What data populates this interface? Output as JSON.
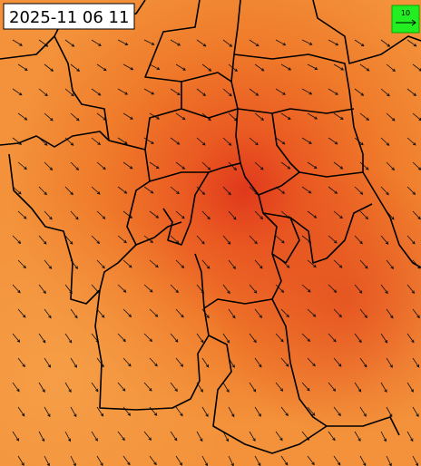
{
  "header": {
    "timestamp": "2025-11 06 11"
  },
  "legend": {
    "scale_label": "10"
  }
}
